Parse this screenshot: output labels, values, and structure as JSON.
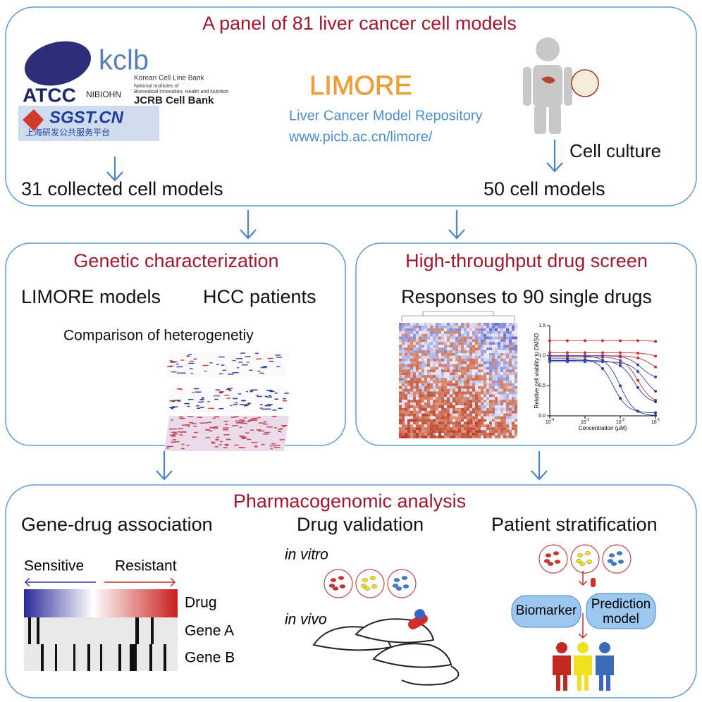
{
  "panel": {
    "title": "A panel of 81 liver cancer cell models",
    "logos": {
      "atcc": "ATCC",
      "kclb": "kclb",
      "kclb_name": "Korean Cell Line Bank",
      "nibiohn": "NIBIOHN",
      "nibiohn_name": [
        "National Institutes of",
        "Biomedical Innovation, Health and Nutrition"
      ],
      "jcrb": "JCRB Cell Bank",
      "sgst": "SGST.CN",
      "sgst_name": "上海研发公共服务平台"
    },
    "limore": {
      "name": "LIMORE",
      "subtitle": "Liver Cancer Model Repository",
      "url": "www.picb.ac.cn/limore/"
    },
    "culture": "Cell culture",
    "collected": "31 collected cell models",
    "models": "50 cell models"
  },
  "genetic": {
    "title": "Genetic characterization",
    "left": "LIMORE models",
    "right": "HCC patients",
    "caption": "Comparison of heterogenetiy"
  },
  "screen": {
    "title": "High-throughput drug screen",
    "subtitle": "Responses to 90 single drugs",
    "plot": {
      "ylabel": "Relative cell viability to DMSO",
      "xlabel": "Concentration (μM)",
      "yticks": [
        "0.0",
        "0.5",
        "1.0",
        "1.5"
      ],
      "xticks": [
        {
          "base": "10",
          "exp": "-4"
        },
        {
          "base": "10",
          "exp": "-3"
        },
        {
          "base": "10",
          "exp": "-2"
        },
        {
          "base": "10",
          "exp": "-1"
        }
      ]
    }
  },
  "analysis": {
    "title": "Pharmacogenomic analysis",
    "association": {
      "title": "Gene-drug association",
      "sensitive": "Sensitive",
      "resistant": "Resistant",
      "rows": [
        "Drug",
        "Gene A",
        "Gene B"
      ]
    },
    "validation": {
      "title": "Drug validation",
      "invitro": "in vitro",
      "invivo": "in vivo"
    },
    "stratification": {
      "title": "Patient stratification",
      "biomarker": "Biomarker",
      "prediction": [
        "Prediction",
        "model"
      ]
    }
  }
}
